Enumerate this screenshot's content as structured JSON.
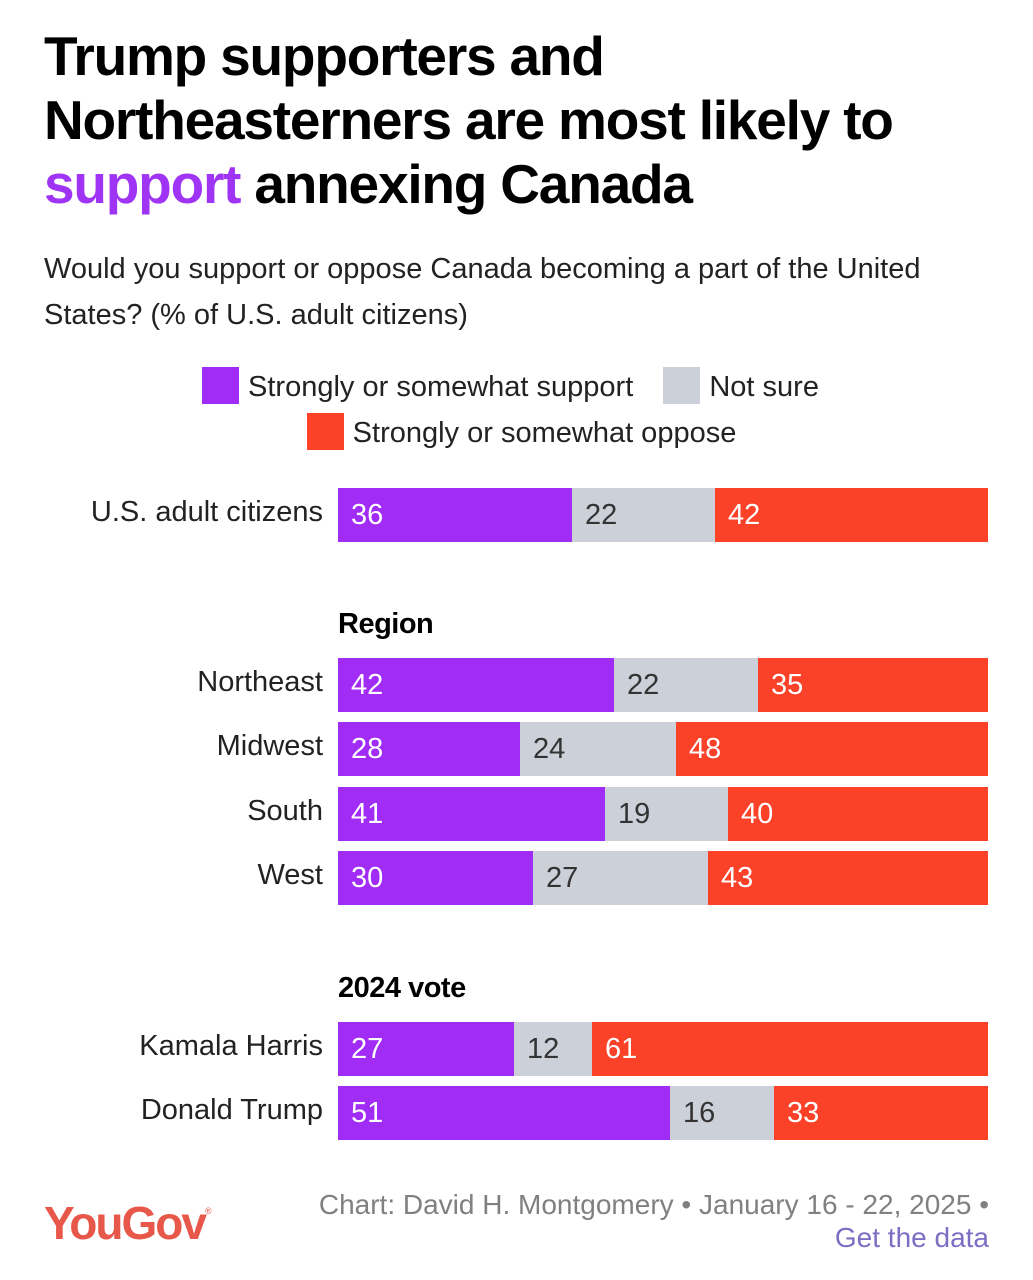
{
  "title": {
    "before": "Trump supporters and Northeasterners are most likely to ",
    "highlight": "support",
    "after": " annexing Canada"
  },
  "subtitle": "Would you support or oppose Canada becoming a part of the United States? (% of U.S. adult citizens)",
  "colors": {
    "support": "#a02cf6",
    "not_sure": "#ccd0d9",
    "oppose": "#fb4229",
    "support_text": "#ffffff",
    "not_sure_text": "#333333",
    "oppose_text": "#ffffff"
  },
  "footer": {
    "logo": "YouGov",
    "logo_mark": "®",
    "credit": "Chart: David H. Montgomery • January 16 - 22, 2025 •",
    "link": "Get the data"
  },
  "chart_data": {
    "type": "bar",
    "orientation": "horizontal",
    "stacked": true,
    "normalized": true,
    "title": "Trump supporters and Northeasterners are most likely to support annexing Canada",
    "subtitle": "Would you support or oppose Canada becoming a part of the United States? (% of U.S. adult citizens)",
    "xlabel": "",
    "ylabel": "",
    "unit": "%",
    "legend_position": "top",
    "legend": [
      "Strongly or somewhat support",
      "Not sure",
      "Strongly or somewhat oppose"
    ],
    "grid": false,
    "groups": [
      {
        "heading": "",
        "rows": [
          {
            "label": "U.S. adult citizens",
            "values": [
              36,
              22,
              42
            ]
          }
        ]
      },
      {
        "heading": "Region",
        "rows": [
          {
            "label": "Northeast",
            "values": [
              42,
              22,
              35
            ]
          },
          {
            "label": "Midwest",
            "values": [
              28,
              24,
              48
            ]
          },
          {
            "label": "South",
            "values": [
              41,
              19,
              40
            ]
          },
          {
            "label": "West",
            "values": [
              30,
              27,
              43
            ]
          }
        ]
      },
      {
        "heading": "2024 vote",
        "rows": [
          {
            "label": "Kamala Harris",
            "values": [
              27,
              12,
              61
            ]
          },
          {
            "label": "Donald Trump",
            "values": [
              51,
              16,
              33
            ]
          }
        ]
      }
    ],
    "series": [
      {
        "name": "Strongly or somewhat support",
        "values": [
          36,
          42,
          28,
          41,
          30,
          27,
          51
        ]
      },
      {
        "name": "Not sure",
        "values": [
          22,
          22,
          24,
          19,
          27,
          12,
          16
        ]
      },
      {
        "name": "Strongly or somewhat oppose",
        "values": [
          42,
          35,
          48,
          40,
          43,
          61,
          33
        ]
      }
    ],
    "categories": [
      "U.S. adult citizens",
      "Northeast",
      "Midwest",
      "South",
      "West",
      "Kamala Harris",
      "Donald Trump"
    ]
  }
}
